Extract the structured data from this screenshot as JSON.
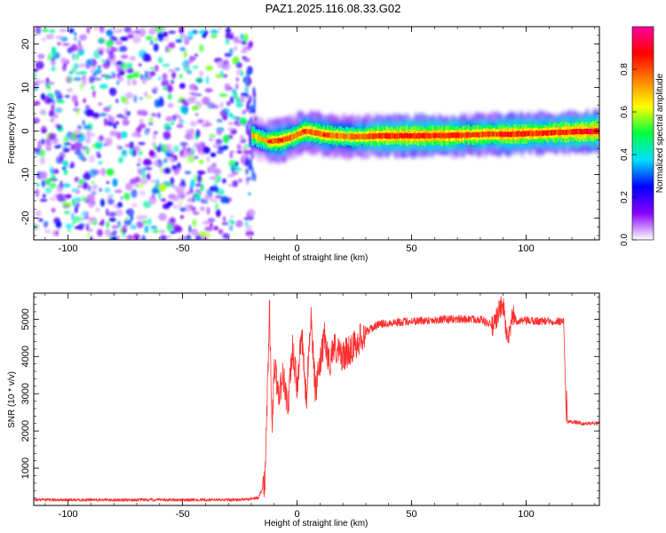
{
  "title": "PAZ1.2025.116.08.33.G02",
  "chart_data": [
    {
      "type": "heatmap",
      "xlabel": "Height of straight line (km)",
      "ylabel": "Frequency (Hz)",
      "xlim": [
        -115,
        132
      ],
      "ylim": [
        -25,
        24
      ],
      "xticks": [
        -100,
        -50,
        0,
        50,
        100
      ],
      "yticks": [
        -20,
        -10,
        0,
        10,
        20
      ],
      "colorbar": {
        "label": "Normalized spectral amplitude",
        "range": [
          0,
          1
        ],
        "ticks": [
          0.0,
          0.2,
          0.4,
          0.6,
          0.8
        ],
        "colors": [
          "#ffffff",
          "#8800ff",
          "#0000ff",
          "#00e0ff",
          "#00ff40",
          "#ffff00",
          "#ff8000",
          "#ff0000",
          "#ff00a0"
        ]
      },
      "noise_region_x": [
        -115,
        -20
      ],
      "ridge": [
        {
          "x": -20,
          "f": -1.0,
          "amp": 0.6
        },
        {
          "x": -15,
          "f": -2.0,
          "amp": 0.6
        },
        {
          "x": -12,
          "f": -2.4,
          "amp": 0.75
        },
        {
          "x": -7,
          "f": -2.1,
          "amp": 0.8
        },
        {
          "x": -2,
          "f": -1.3,
          "amp": 0.7
        },
        {
          "x": 3,
          "f": 0.0,
          "amp": 0.8
        },
        {
          "x": 7,
          "f": -0.3,
          "amp": 0.75
        },
        {
          "x": 12,
          "f": -0.9,
          "amp": 0.8
        },
        {
          "x": 20,
          "f": -1.2,
          "amp": 0.7
        },
        {
          "x": 26,
          "f": -1.3,
          "amp": 0.75
        },
        {
          "x": 35,
          "f": -1.1,
          "amp": 0.85
        },
        {
          "x": 50,
          "f": -1.1,
          "amp": 0.9
        },
        {
          "x": 70,
          "f": -1.0,
          "amp": 0.85
        },
        {
          "x": 85,
          "f": -0.7,
          "amp": 0.8
        },
        {
          "x": 90,
          "f": -0.8,
          "amp": 0.9
        },
        {
          "x": 100,
          "f": -0.6,
          "amp": 0.85
        },
        {
          "x": 115,
          "f": -0.3,
          "amp": 0.85
        },
        {
          "x": 132,
          "f": 0.0,
          "amp": 0.95
        }
      ]
    },
    {
      "type": "line",
      "xlabel": "Height of straight line (km)",
      "ylabel": "SNR (10 * v/v)",
      "xlim": [
        -115,
        132
      ],
      "ylim": [
        0,
        5700
      ],
      "xticks": [
        -100,
        -50,
        0,
        50,
        100
      ],
      "yticks": [
        1000,
        2000,
        3000,
        4000,
        5000
      ],
      "color": "#ff3030",
      "series": [
        {
          "x": [
            -115,
            -100,
            -80,
            -60,
            -40,
            -25,
            -17,
            -14,
            -13,
            -12,
            -11,
            -10,
            -8,
            -6,
            -4,
            -2,
            0,
            2,
            4,
            6,
            8,
            10,
            12,
            14,
            16,
            18,
            20,
            25,
            30,
            35,
            40,
            50,
            60,
            70,
            80,
            86,
            88,
            90,
            92,
            94,
            96,
            100,
            110,
            116,
            117,
            118,
            120,
            125,
            132
          ],
          "y": [
            150,
            150,
            150,
            150,
            150,
            150,
            200,
            600,
            3000,
            5300,
            2000,
            3800,
            3000,
            3500,
            2600,
            4200,
            3200,
            4600,
            2800,
            5200,
            3000,
            3800,
            4500,
            3800,
            4300,
            4100,
            4000,
            4300,
            4650,
            4850,
            4900,
            4950,
            4980,
            5000,
            5000,
            4800,
            5200,
            5400,
            4300,
            5100,
            4950,
            4950,
            4950,
            4950,
            4950,
            2250,
            2250,
            2200,
            2200
          ]
        }
      ]
    }
  ]
}
